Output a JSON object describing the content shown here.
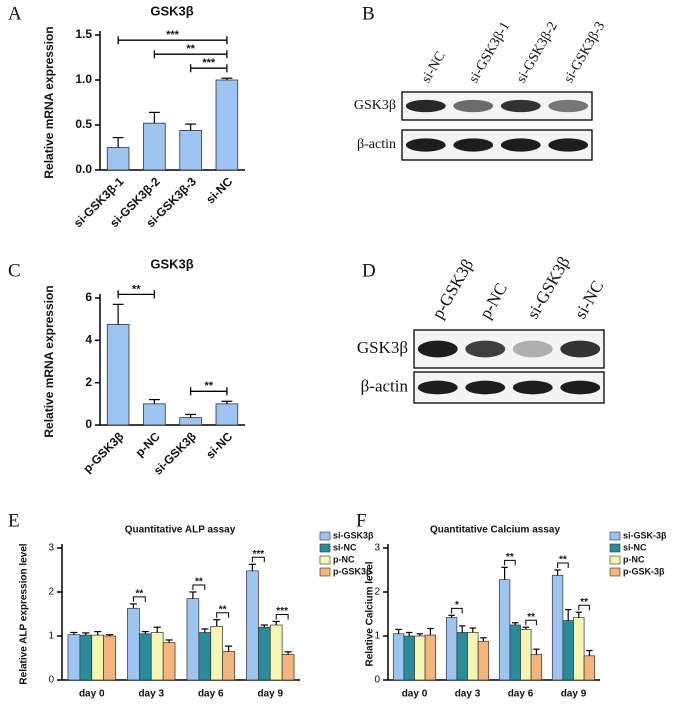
{
  "panel_labels": [
    "A",
    "B",
    "C",
    "D",
    "E",
    "F"
  ],
  "chart_data": [
    {
      "type": "bar",
      "title": "GSK3β",
      "y_label": "Relative mRNA expression",
      "categories": [
        "si-GSK3β-1",
        "si-GSK3β-2",
        "si-GSK3β-3",
        "si-NC"
      ],
      "values": [
        0.25,
        0.52,
        0.44,
        1.0
      ],
      "errors": [
        0.11,
        0.12,
        0.07,
        0.02
      ],
      "color": "#9ec5f2",
      "ylim": [
        0,
        1.5
      ],
      "yticks": [
        {
          "value": 0,
          "label": "0.0"
        },
        0.5,
        {
          "value": 1,
          "label": "1.0"
        },
        1.5
      ],
      "annotations": [
        {
          "text": "***",
          "from": 0,
          "to": 3
        },
        {
          "text": "**",
          "from": 1,
          "to": 3
        },
        {
          "text": "***",
          "from": 2,
          "to": 3
        }
      ]
    },
    {
      "type": "bar",
      "title": "GSK3β",
      "y_label": "Relative mRNA expression",
      "categories": [
        "p-GSK3β",
        "p-NC",
        "si-GSK3β",
        "si-NC"
      ],
      "values": [
        4.75,
        1.0,
        0.35,
        1.0
      ],
      "errors": [
        0.95,
        0.2,
        0.15,
        0.12
      ],
      "color": "#9ec5f2",
      "ylim": [
        0,
        6
      ],
      "yticks": [
        0,
        2,
        4,
        6
      ],
      "annotations": [
        {
          "text": "**",
          "from": 0,
          "to": 1
        },
        {
          "text": "**",
          "from": 2,
          "to": 3
        }
      ]
    },
    {
      "type": "bar",
      "title": "Quantitative ALP assay",
      "y_label": "Relative ALP expression level",
      "categories": [
        "day 0",
        "day 3",
        "day 6",
        "day 9"
      ],
      "series": [
        {
          "name": "si-GSK3β",
          "color": "#9ec5f2",
          "values": [
            1.03,
            1.63,
            1.85,
            2.48
          ],
          "errors": [
            0.05,
            0.1,
            0.15,
            0.15
          ]
        },
        {
          "name": "si-NC",
          "color": "#2b8c99",
          "values": [
            1.02,
            1.05,
            1.08,
            1.2
          ],
          "errors": [
            0.05,
            0.05,
            0.08,
            0.05
          ]
        },
        {
          "name": "p-NC",
          "color": "#f6f5b4",
          "values": [
            1.02,
            1.08,
            1.22,
            1.25
          ],
          "errors": [
            0.08,
            0.12,
            0.15,
            0.08
          ]
        },
        {
          "name": "p-GSK3β",
          "color": "#f3b47e",
          "values": [
            1.0,
            0.85,
            0.65,
            0.58
          ],
          "errors": [
            0.03,
            0.06,
            0.12,
            0.06
          ]
        }
      ],
      "ylim": [
        0,
        3
      ],
      "yticks": [
        0,
        1,
        2,
        3
      ],
      "legend": "right",
      "annotations": [
        {
          "text": "**",
          "category": 1,
          "series": [
            0,
            1
          ]
        },
        {
          "text": "**",
          "category": 2,
          "series": [
            0,
            1
          ]
        },
        {
          "text": "**",
          "category": 2,
          "series": [
            2,
            3
          ]
        },
        {
          "text": "***",
          "category": 3,
          "series": [
            0,
            1
          ]
        },
        {
          "text": "***",
          "category": 3,
          "series": [
            2,
            3
          ]
        }
      ]
    },
    {
      "type": "bar",
      "title": "Quantitative Calcium assay",
      "y_label": "Relative Calcium level",
      "categories": [
        "day 0",
        "day 3",
        "day 6",
        "day 9"
      ],
      "series": [
        {
          "name": "si-GSK-3β",
          "color": "#9ec5f2",
          "values": [
            1.05,
            1.42,
            2.28,
            2.38
          ],
          "errors": [
            0.1,
            0.05,
            0.28,
            0.12
          ]
        },
        {
          "name": "si-NC",
          "color": "#2b8c99",
          "values": [
            1.0,
            1.08,
            1.25,
            1.35
          ],
          "errors": [
            0.08,
            0.15,
            0.05,
            0.25
          ]
        },
        {
          "name": "p-NC",
          "color": "#f6f5b4",
          "values": [
            1.0,
            1.08,
            1.15,
            1.42
          ],
          "errors": [
            0.05,
            0.1,
            0.05,
            0.12
          ]
        },
        {
          "name": "p-GSK-3β",
          "color": "#f3b47e",
          "values": [
            1.02,
            0.88,
            0.58,
            0.55
          ],
          "errors": [
            0.15,
            0.08,
            0.12,
            0.12
          ]
        }
      ],
      "ylim": [
        0,
        3
      ],
      "yticks": [
        0,
        1,
        2,
        3
      ],
      "legend": "right",
      "annotations": [
        {
          "text": "*",
          "category": 1,
          "series": [
            0,
            1
          ]
        },
        {
          "text": "**",
          "category": 2,
          "series": [
            0,
            1
          ]
        },
        {
          "text": "**",
          "category": 2,
          "series": [
            2,
            3
          ]
        },
        {
          "text": "**",
          "category": 3,
          "series": [
            0,
            1
          ]
        },
        {
          "text": "**",
          "category": 3,
          "series": [
            2,
            3
          ]
        }
      ]
    }
  ],
  "blots": [
    {
      "lanes": [
        "si-NC",
        "si-GSK3β-1",
        "si-GSK3β-2",
        "si-GSK3β-3"
      ],
      "rows": [
        "GSK3β",
        "β-actin"
      ]
    },
    {
      "lanes": [
        "p-GSK3β",
        "p-NC",
        "si-GSK3β",
        "si-NC"
      ],
      "rows": [
        "GSK3β",
        "β-actin"
      ]
    }
  ]
}
